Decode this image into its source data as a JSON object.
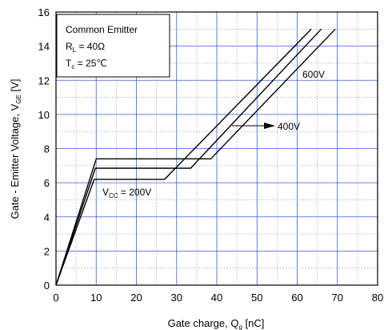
{
  "chart_data": {
    "type": "line",
    "xlabel_main": "Gate charge, Q",
    "xlabel_sub": "g",
    "xlabel_unit": " [nC]",
    "ylabel_main": "Gate - Emitter Voltage, V",
    "ylabel_sub": "GE",
    "ylabel_unit": " [V]",
    "xlim": [
      0,
      80
    ],
    "ylim": [
      0,
      16
    ],
    "x_ticks": [
      "0",
      "10",
      "20",
      "30",
      "40",
      "50",
      "60",
      "70",
      "80"
    ],
    "y_ticks": [
      "0",
      "2",
      "4",
      "6",
      "8",
      "10",
      "12",
      "14",
      "16"
    ],
    "grid": true,
    "series": [
      {
        "name": "200V",
        "x": [
          0,
          9.5,
          27,
          63.5
        ],
        "y": [
          0,
          6.2,
          6.2,
          15
        ]
      },
      {
        "name": "400V",
        "x": [
          0,
          9.8,
          33.5,
          66
        ],
        "y": [
          0,
          6.85,
          6.85,
          15
        ]
      },
      {
        "name": "600V",
        "x": [
          0,
          10,
          38.5,
          69.5
        ],
        "y": [
          0,
          7.4,
          7.4,
          15
        ]
      }
    ],
    "legend_box": {
      "line1": "Common Emitter",
      "r_main": "R",
      "r_sub": "L",
      "r_value": " = 40",
      "r_unit": "Ω",
      "t_main": "T",
      "t_sub": "c",
      "t_value": " = 25",
      "t_unit": "℃"
    },
    "annotations": {
      "v600": "600V",
      "v400": "400V",
      "vcc_main": "V",
      "vcc_sub": "CC",
      "vcc_value": " = 200V"
    }
  }
}
